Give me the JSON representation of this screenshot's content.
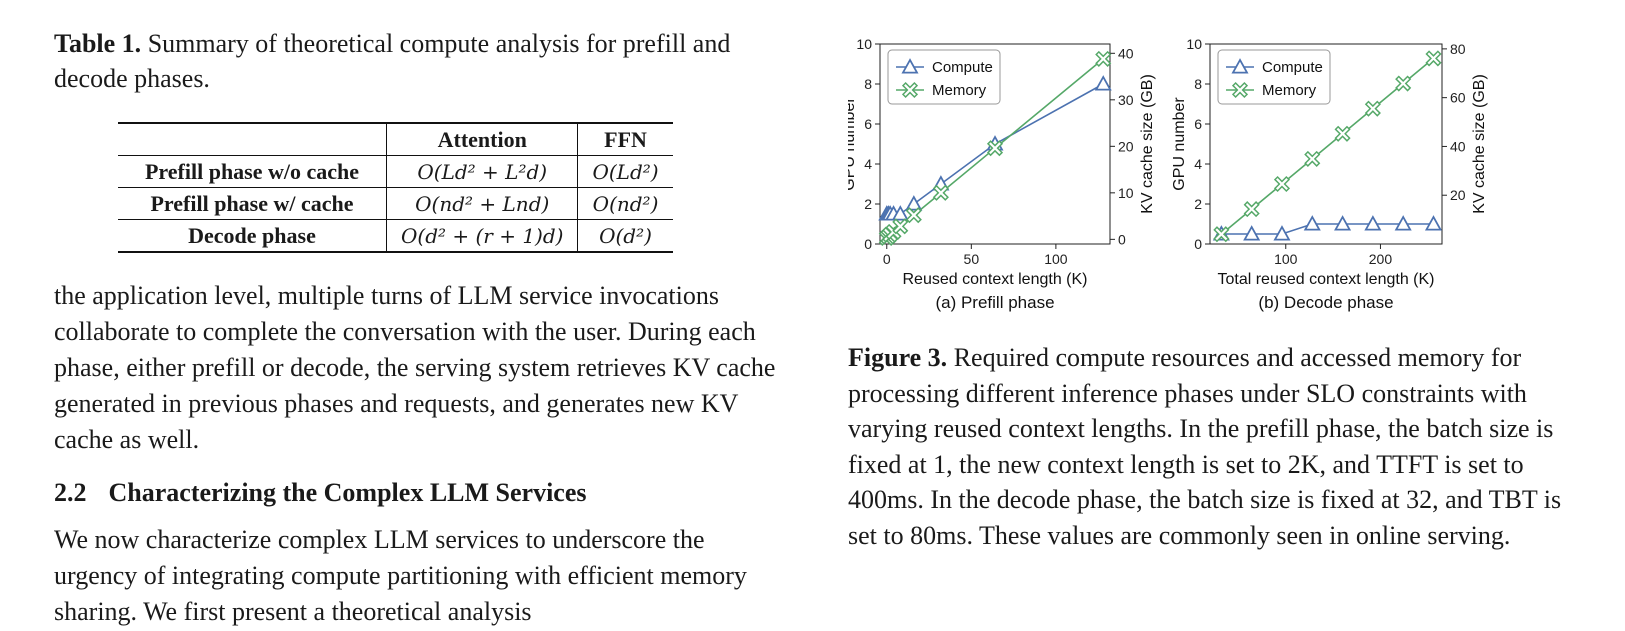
{
  "table_caption": {
    "label": "Table 1.",
    "text": " Summary of theoretical compute analysis for prefill and decode phases."
  },
  "table": {
    "headers": [
      "",
      "Attention",
      "FFN"
    ],
    "rows": [
      {
        "name": "Prefill phase w/o cache",
        "attention": "O(Ld² + L²d)",
        "ffn": "O(Ld²)"
      },
      {
        "name": "Prefill phase w/ cache",
        "attention": "O(nd² + Lnd)",
        "ffn": "O(nd²)"
      },
      {
        "name": "Decode phase",
        "attention": "O(d² + (r + 1)d)",
        "ffn": "O(d²)"
      }
    ]
  },
  "paragraph1": "the application level, multiple turns of LLM service invocations collaborate to complete the conversation with the user. During each phase, either prefill or decode, the serving system retrieves KV cache generated in previous phases and requests, and generates new KV cache as well.",
  "section": {
    "number": "2.2",
    "title": "Characterizing the Complex LLM Services"
  },
  "paragraph2": "We now characterize complex LLM services to underscore the urgency of integrating compute partitioning with efficient memory sharing. We first present a theoretical analysis",
  "figure_caption": {
    "label": "Figure 3.",
    "text": " Required compute resources and accessed memory for processing different inference phases under SLO constraints with varying reused context lengths. In the prefill phase, the batch size is fixed at 1, the new context length is set to 2K, and TTFT is set to 400ms. In the decode phase, the batch size is fixed at 32, and TBT is set to 80ms. These values are commonly seen in online serving."
  },
  "colors": {
    "compute": "#4c72b0",
    "memory": "#55a868"
  },
  "chart_data": [
    {
      "type": "line",
      "subtitle": "(a) Prefill phase",
      "xlabel": "Reused context length (K)",
      "ylabel": "GPU number",
      "y2label": "KV cache size (GB)",
      "xlim": [
        -4,
        132
      ],
      "ylim": [
        0,
        10
      ],
      "y2lim": [
        -1,
        42
      ],
      "xticks": [
        0,
        50,
        100
      ],
      "yticks": [
        0,
        2,
        4,
        6,
        8,
        10
      ],
      "y2ticks": [
        0,
        10,
        20,
        30,
        40
      ],
      "legend": "top-left",
      "series": [
        {
          "name": "Compute",
          "axis": "left",
          "marker": "triangle",
          "color": "#4c72b0",
          "x": [
            0,
            1,
            2,
            4,
            8,
            16,
            32,
            64,
            128
          ],
          "y": [
            1.5,
            1.5,
            1.5,
            1.5,
            1.5,
            2,
            3,
            5,
            8
          ]
        },
        {
          "name": "Memory",
          "axis": "right",
          "marker": "x",
          "color": "#55a868",
          "x": [
            0,
            1,
            2,
            4,
            8,
            16,
            32,
            64,
            128
          ],
          "y": [
            0.3,
            0.6,
            1,
            1.6,
            2.8,
            5.2,
            10,
            19.6,
            38.8
          ]
        }
      ]
    },
    {
      "type": "line",
      "subtitle": "(b) Decode phase",
      "xlabel": "Total reused context length (K)",
      "ylabel": "GPU number",
      "y2label": "KV cache size (GB)",
      "xlim": [
        20,
        265
      ],
      "ylim": [
        0,
        10
      ],
      "y2lim": [
        0,
        82
      ],
      "xticks": [
        100,
        200
      ],
      "yticks": [
        0,
        2,
        4,
        6,
        8,
        10
      ],
      "y2ticks": [
        20,
        40,
        60,
        80
      ],
      "legend": "top-left",
      "series": [
        {
          "name": "Compute",
          "axis": "left",
          "marker": "triangle",
          "color": "#4c72b0",
          "x": [
            32,
            64,
            96,
            128,
            160,
            192,
            224,
            256
          ],
          "y": [
            0.5,
            0.5,
            0.5,
            1,
            1,
            1,
            1,
            1
          ]
        },
        {
          "name": "Memory",
          "axis": "right",
          "marker": "x",
          "color": "#55a868",
          "x": [
            32,
            64,
            96,
            128,
            160,
            192,
            224,
            256
          ],
          "y": [
            4,
            14.3,
            24.6,
            34.9,
            45.2,
            55.5,
            65.8,
            76.1
          ]
        }
      ]
    }
  ]
}
